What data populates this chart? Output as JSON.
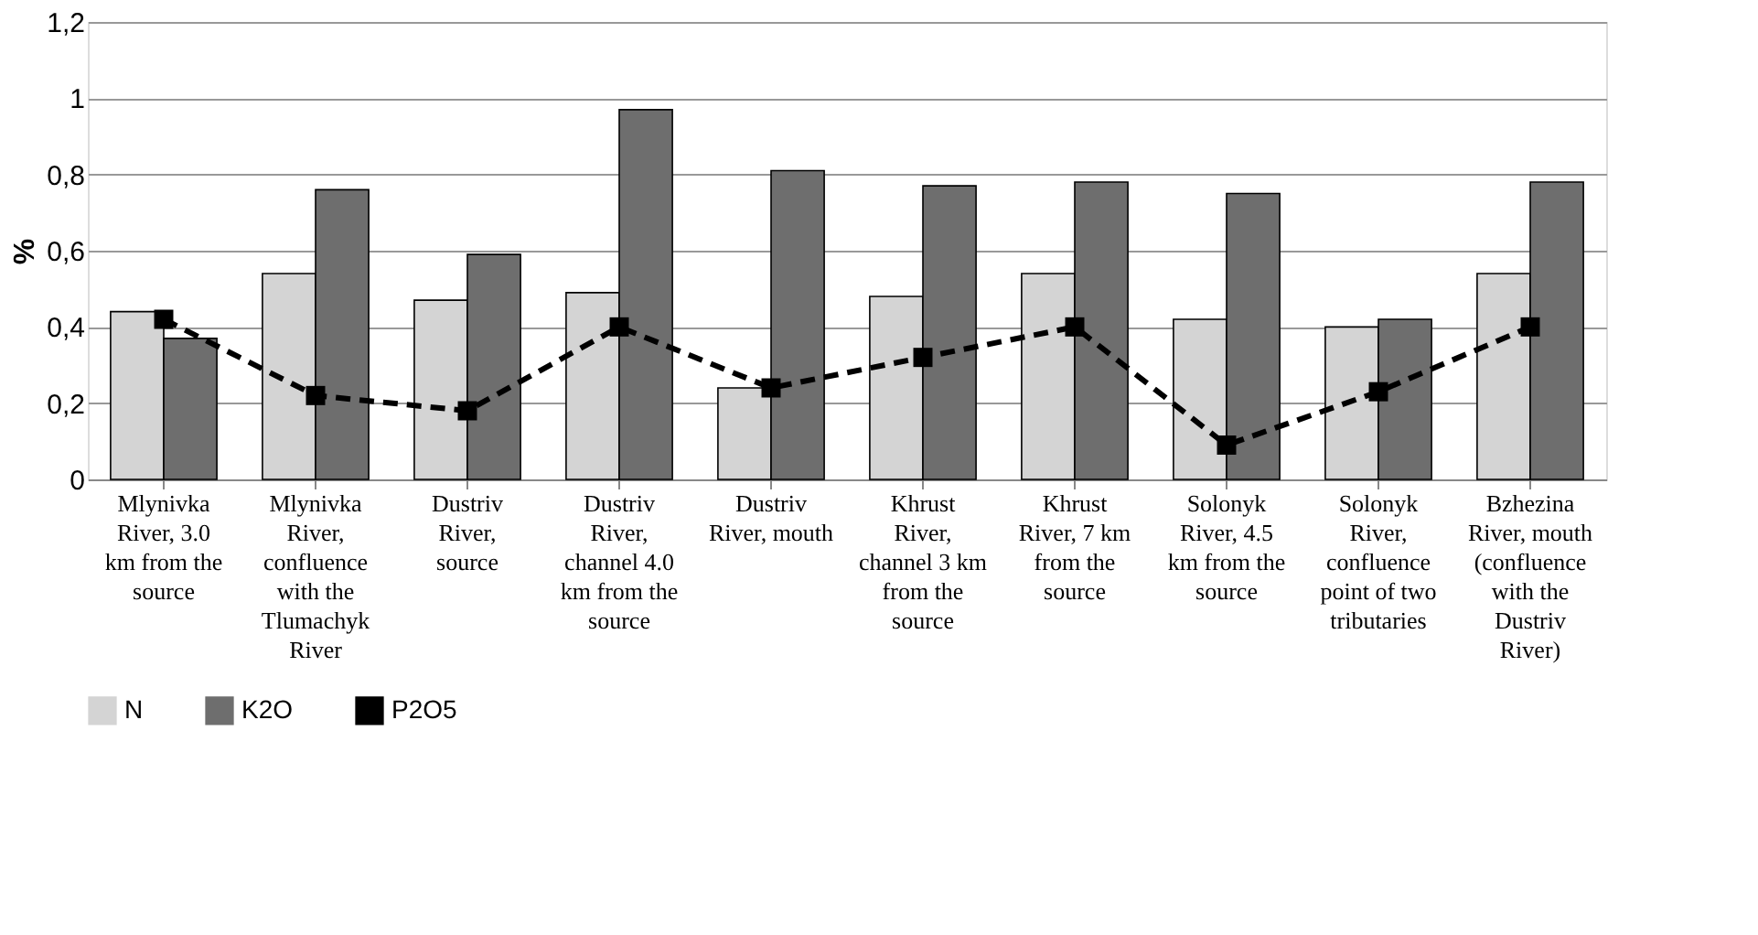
{
  "chart_data": {
    "type": "bar",
    "ylabel": "%",
    "categories": [
      "Mlynivka River, 3.0 km from the source",
      "Mlynivka River, confluence with the Tlumachyk River",
      "Dustriv River, source",
      "Dustriv River, channel 4.0 km from the source",
      "Dustriv River, mouth",
      "Khrust River, channel 3 km from the source",
      "Khrust River, 7 km from the source",
      "Solonyk River, 4.5 km from the source",
      "Solonyk River, confluence point of two tributaries",
      "Bzhezina River, mouth (confluence with the Dustriv River)"
    ],
    "series": [
      {
        "name": "N",
        "color": "#d4d4d4",
        "values": [
          0.44,
          0.54,
          0.47,
          0.49,
          0.24,
          0.48,
          0.54,
          0.42,
          0.4,
          0.54
        ]
      },
      {
        "name": "K2O",
        "color": "#6e6e6e",
        "values": [
          0.37,
          0.76,
          0.59,
          0.97,
          0.81,
          0.77,
          0.78,
          0.75,
          0.42,
          0.78
        ]
      },
      {
        "name": "P2O5",
        "type": "line",
        "color": "#000000",
        "marker": "square",
        "line_style": "dashed",
        "values": [
          0.42,
          0.22,
          0.18,
          0.4,
          0.24,
          0.32,
          0.4,
          0.09,
          0.23,
          0.4
        ]
      }
    ],
    "ylim": [
      0,
      1.2
    ],
    "yticks": [
      0,
      {
        "value": 0.2,
        "label": "0,2"
      },
      {
        "value": 0.4,
        "label": "0,4"
      },
      {
        "value": 0.6,
        "label": "0,6"
      },
      {
        "value": 0.8,
        "label": "0,8"
      },
      1,
      {
        "value": 1.2,
        "label": "1,2"
      }
    ],
    "grid": "y",
    "legend": "bottom"
  }
}
